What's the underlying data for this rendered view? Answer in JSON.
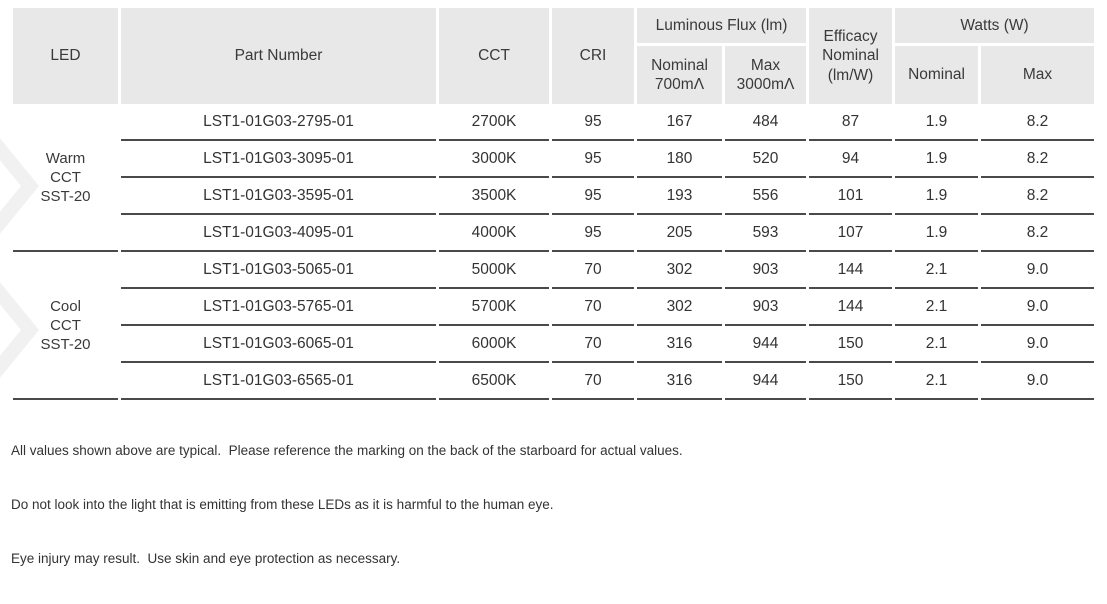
{
  "colors": {
    "header_bg": "#e8e8e8",
    "row_line": "#4a4a4a",
    "text": "#383838",
    "watermark": "#f1f1f1"
  },
  "table": {
    "header": {
      "led": "LED",
      "part_number": "Part Number",
      "cct": "CCT",
      "cri": "CRI",
      "luminous_flux_group": "Luminous Flux (lm)",
      "flux_nominal": [
        "Nominal",
        "700mΛ"
      ],
      "flux_max": [
        "Max",
        "3000mΛ"
      ],
      "efficacy": [
        "Efficacy",
        "Nominal",
        "(lm/W)"
      ],
      "watts_group": "Watts (W)",
      "watts_nominal": "Nominal",
      "watts_max": "Max"
    },
    "groups": [
      {
        "label_lines": [
          "Warm",
          "CCT",
          "SST-20"
        ],
        "rows": [
          {
            "part_number": "LST1-01G03-2795-01",
            "cct": "2700K",
            "cri": "95",
            "flux_nominal": "167",
            "flux_max": "484",
            "efficacy": "87",
            "watts_nominal": "1.9",
            "watts_max": "8.2"
          },
          {
            "part_number": "LST1-01G03-3095-01",
            "cct": "3000K",
            "cri": "95",
            "flux_nominal": "180",
            "flux_max": "520",
            "efficacy": "94",
            "watts_nominal": "1.9",
            "watts_max": "8.2"
          },
          {
            "part_number": "LST1-01G03-3595-01",
            "cct": "3500K",
            "cri": "95",
            "flux_nominal": "193",
            "flux_max": "556",
            "efficacy": "101",
            "watts_nominal": "1.9",
            "watts_max": "8.2"
          },
          {
            "part_number": "LST1-01G03-4095-01",
            "cct": "4000K",
            "cri": "95",
            "flux_nominal": "205",
            "flux_max": "593",
            "efficacy": "107",
            "watts_nominal": "1.9",
            "watts_max": "8.2"
          }
        ]
      },
      {
        "label_lines": [
          "Cool",
          "CCT",
          "SST-20"
        ],
        "rows": [
          {
            "part_number": "LST1-01G03-5065-01",
            "cct": "5000K",
            "cri": "70",
            "flux_nominal": "302",
            "flux_max": "903",
            "efficacy": "144",
            "watts_nominal": "2.1",
            "watts_max": "9.0"
          },
          {
            "part_number": "LST1-01G03-5765-01",
            "cct": "5700K",
            "cri": "70",
            "flux_nominal": "302",
            "flux_max": "903",
            "efficacy": "144",
            "watts_nominal": "2.1",
            "watts_max": "9.0"
          },
          {
            "part_number": "LST1-01G03-6065-01",
            "cct": "6000K",
            "cri": "70",
            "flux_nominal": "316",
            "flux_max": "944",
            "efficacy": "150",
            "watts_nominal": "2.1",
            "watts_max": "9.0"
          },
          {
            "part_number": "LST1-01G03-6565-01",
            "cct": "6500K",
            "cri": "70",
            "flux_nominal": "316",
            "flux_max": "944",
            "efficacy": "150",
            "watts_nominal": "2.1",
            "watts_max": "9.0"
          }
        ]
      }
    ]
  },
  "notes": [
    "All values shown above are typical.  Please reference the marking on the back of the starboard for actual values.",
    "Do not look into the light that is emitting from these LEDs as it is harmful to the human eye.",
    "Eye injury may result.  Use skin and eye protection as necessary."
  ]
}
